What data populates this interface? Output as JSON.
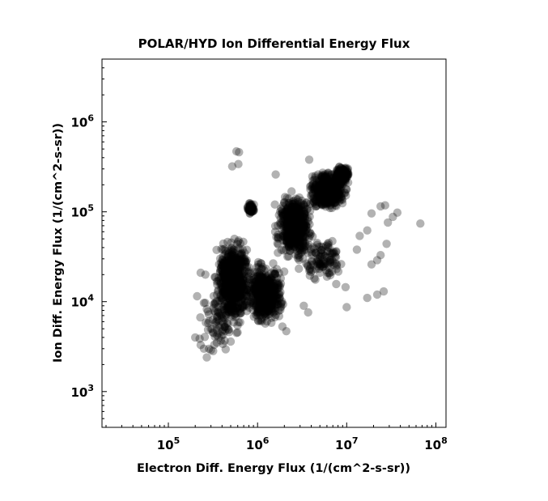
{
  "chart_data": {
    "type": "scatter",
    "title": "POLAR/HYD  Ion Differential Energy Flux",
    "xlabel": "Electron Diff. Energy Flux (1/(cm^2-s-sr))",
    "ylabel": "Ion Diff. Energy Flux (1/(cm^2-s-sr))",
    "xscale": "log",
    "yscale": "log",
    "xlim": [
      18000,
      130000000
    ],
    "ylim": [
      400,
      5000000
    ],
    "xticks": [
      {
        "value": 100000,
        "base": "10",
        "exp": "5"
      },
      {
        "value": 1000000,
        "base": "10",
        "exp": "6"
      },
      {
        "value": 10000000,
        "base": "10",
        "exp": "7"
      },
      {
        "value": 100000000,
        "base": "10",
        "exp": "8"
      }
    ],
    "yticks": [
      {
        "value": 1000,
        "base": "10",
        "exp": "3"
      },
      {
        "value": 10000,
        "base": "10",
        "exp": "4"
      },
      {
        "value": 100000,
        "base": "10",
        "exp": "5"
      },
      {
        "value": 1000000,
        "base": "10",
        "exp": "6"
      }
    ],
    "grid": false,
    "marker": {
      "color": "#000000",
      "opacity": 0.3
    },
    "clusters": [
      {
        "x": [
          300000,
          900000
        ],
        "y": [
          5000,
          60000
        ],
        "count": 650
      },
      {
        "x": [
          700000,
          2100000
        ],
        "y": [
          5000,
          30000
        ],
        "count": 550
      },
      {
        "x": [
          1500000,
          4500000
        ],
        "y": [
          25000,
          180000
        ],
        "count": 500
      },
      {
        "x": [
          3500000,
          11000000
        ],
        "y": [
          100000,
          300000
        ],
        "count": 500
      },
      {
        "x": [
          7000000,
          11000000
        ],
        "y": [
          200000,
          330000
        ],
        "count": 200
      },
      {
        "x": [
          750000,
          950000
        ],
        "y": [
          90000,
          130000
        ],
        "count": 60
      },
      {
        "x": [
          2500000,
          12000000
        ],
        "y": [
          15000,
          60000
        ],
        "count": 110
      },
      {
        "x": [
          200000,
          700000
        ],
        "y": [
          2500,
          15000
        ],
        "count": 90
      }
    ],
    "points": [
      [
        580000,
        470000
      ],
      [
        620000,
        460000
      ],
      [
        520000,
        320000
      ],
      [
        610000,
        340000
      ],
      [
        1600000,
        260000
      ],
      [
        3800000,
        380000
      ],
      [
        2900000,
        70000
      ],
      [
        67000000,
        74000
      ],
      [
        37000000,
        98000
      ],
      [
        33000000,
        88000
      ],
      [
        29000000,
        76000
      ],
      [
        27000000,
        118000
      ],
      [
        24000000,
        115000
      ],
      [
        17000000,
        62000
      ],
      [
        14000000,
        54000
      ],
      [
        28000000,
        44000
      ],
      [
        24000000,
        33000
      ],
      [
        22000000,
        29000
      ],
      [
        19000000,
        26000
      ],
      [
        26000000,
        13000
      ],
      [
        22000000,
        12000
      ],
      [
        17000000,
        11000
      ],
      [
        10000000,
        8700
      ],
      [
        9700000,
        14500
      ],
      [
        6000000,
        19000
      ],
      [
        5000000,
        21000
      ],
      [
        3700000,
        7600
      ],
      [
        3300000,
        9000
      ],
      [
        2100000,
        4700
      ],
      [
        1900000,
        5300
      ],
      [
        200000,
        4000
      ],
      [
        230000,
        3300
      ],
      [
        250000,
        3000
      ],
      [
        270000,
        2400
      ],
      [
        300000,
        2900
      ],
      [
        210000,
        11500
      ],
      [
        230000,
        21000
      ],
      [
        260000,
        20000
      ],
      [
        350000,
        3500
      ],
      [
        500000,
        3600
      ],
      [
        19000000,
        96000
      ],
      [
        13000000,
        38000
      ]
    ]
  }
}
